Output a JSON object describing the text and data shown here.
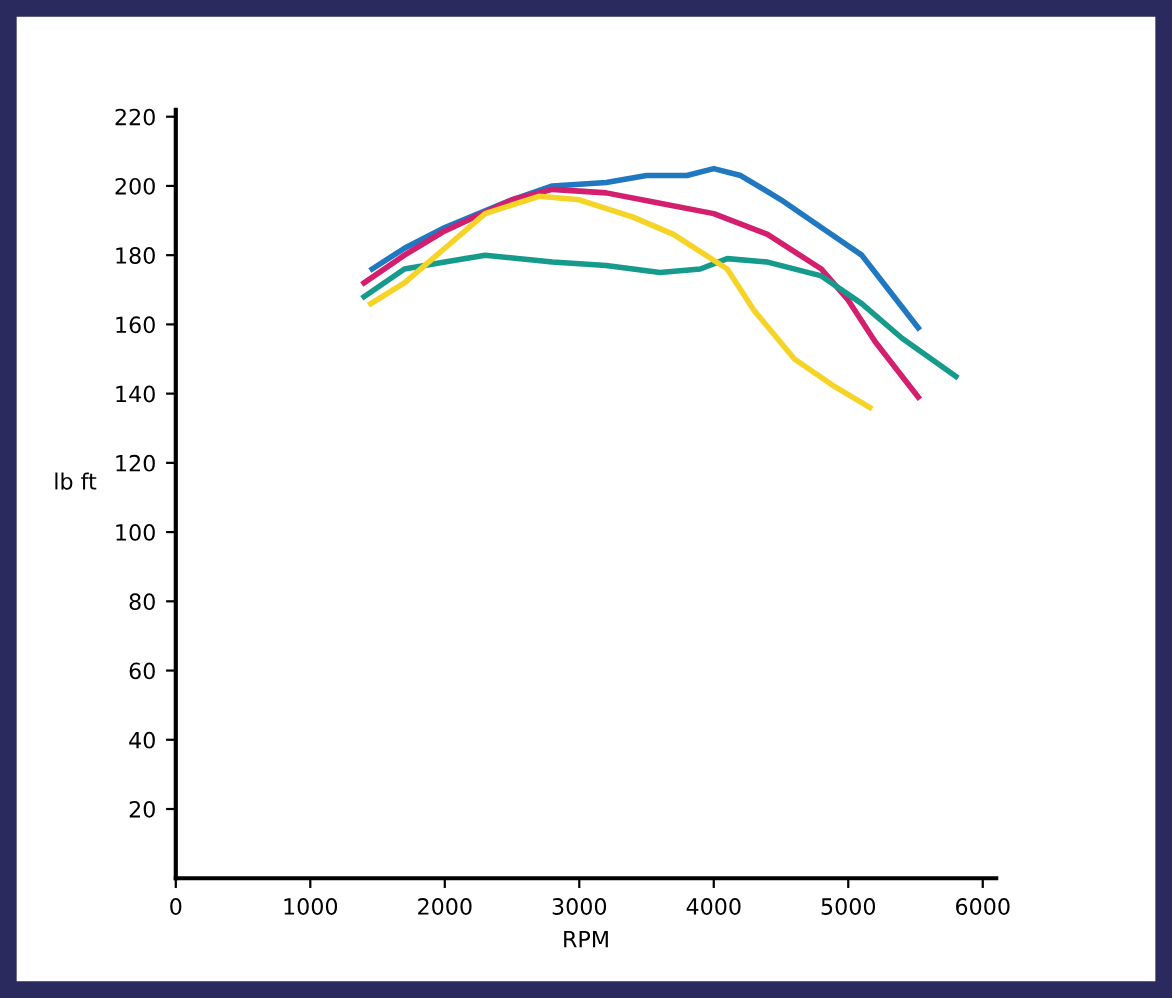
{
  "chart_data": {
    "type": "line",
    "xlabel": "RPM",
    "ylabel": "lb ft",
    "xlim": [
      0,
      6100
    ],
    "xticks": [
      0,
      1000,
      2000,
      3000,
      4000,
      5000,
      6000
    ],
    "ylim": [
      0,
      222
    ],
    "yticks": [
      20,
      40,
      60,
      80,
      100,
      120,
      140,
      160,
      180,
      200,
      220
    ],
    "grid": false,
    "legend": false,
    "line_style": "solid",
    "marker": "none",
    "series": [
      {
        "color": "#1f78c0",
        "x": [
          1460,
          1700,
          2000,
          2500,
          2800,
          3200,
          3500,
          3800,
          4000,
          4200,
          4500,
          4800,
          5100,
          5300,
          5520
        ],
        "values": [
          176,
          182,
          188,
          196,
          200,
          201,
          203,
          203,
          205,
          203,
          196,
          188,
          180,
          170,
          159
        ]
      },
      {
        "color": "#d41e6e",
        "x": [
          1400,
          1700,
          2000,
          2500,
          2800,
          3200,
          3600,
          4000,
          4400,
          4800,
          5000,
          5200,
          5520
        ],
        "values": [
          172,
          180,
          187,
          196,
          199,
          198,
          195,
          192,
          186,
          176,
          167,
          155,
          139
        ]
      },
      {
        "color": "#159a8c",
        "x": [
          1400,
          1700,
          2000,
          2300,
          2800,
          3200,
          3600,
          3900,
          4100,
          4400,
          4800,
          5100,
          5400,
          5800
        ],
        "values": [
          168,
          176,
          178,
          180,
          178,
          177,
          175,
          176,
          179,
          178,
          174,
          166,
          156,
          145
        ]
      },
      {
        "color": "#f5d327",
        "x": [
          1450,
          1700,
          2000,
          2300,
          2700,
          3000,
          3400,
          3700,
          3900,
          4100,
          4300,
          4600,
          4900,
          5160
        ],
        "values": [
          166,
          172,
          182,
          192,
          197,
          196,
          191,
          186,
          181,
          176,
          164,
          150,
          142,
          136
        ]
      }
    ]
  }
}
